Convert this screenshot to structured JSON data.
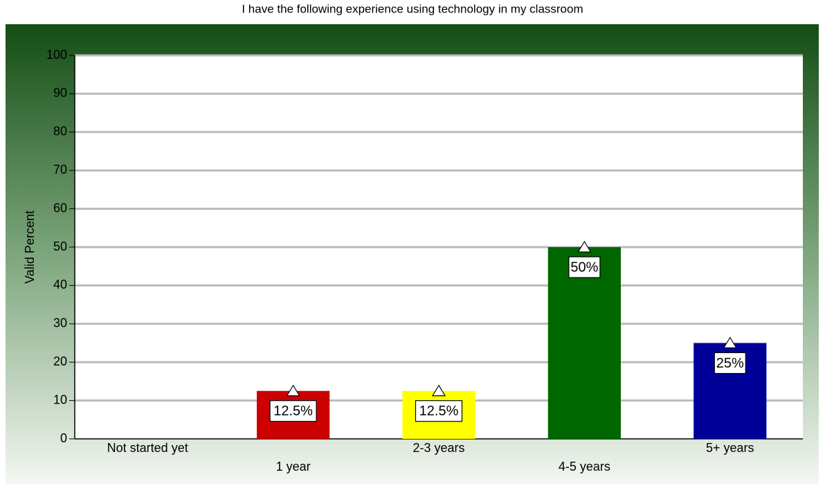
{
  "chart_data": {
    "type": "bar",
    "title": "I have the following experience using technology in my classroom",
    "y_label": "Valid Percent",
    "categories": [
      "Not started yet",
      "1 year",
      "2-3 years",
      "4-5 years",
      "5+ years"
    ],
    "values": [
      0,
      12.5,
      12.5,
      50,
      25
    ],
    "value_labels": [
      null,
      "12.5%",
      "12.5%",
      "50%",
      "25%"
    ],
    "colors": [
      "#cc0000",
      "#cc0000",
      "#ffff00",
      "#006600",
      "#000099"
    ],
    "ylim": [
      0,
      100
    ],
    "yticks": [
      0,
      10,
      20,
      30,
      40,
      50,
      60,
      70,
      80,
      90,
      100
    ],
    "grid": true
  }
}
